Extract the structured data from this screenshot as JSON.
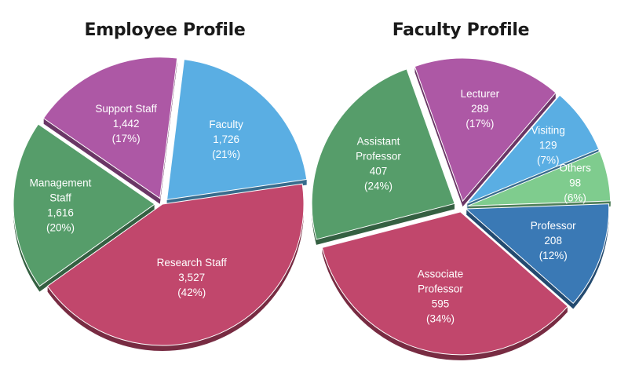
{
  "chart_data": [
    {
      "type": "pie",
      "title": "Employee Profile",
      "start_angle": -83,
      "slices": [
        {
          "lines": [
            "Faculty",
            "1,726",
            "(21%)"
          ],
          "value": 1726,
          "percent": 21,
          "color": "#5aaee3"
        },
        {
          "lines": [
            "Research Staff",
            "3,527",
            "(42%)"
          ],
          "value": 3527,
          "percent": 42,
          "color": "#c1476c"
        },
        {
          "lines": [
            "Management",
            "Staff",
            "1,616",
            "(20%)"
          ],
          "value": 1616,
          "percent": 20,
          "color": "#569d6a"
        },
        {
          "lines": [
            "Support Staff",
            "1,442",
            "(17%)"
          ],
          "value": 1442,
          "percent": 17,
          "color": "#ad58a5"
        }
      ]
    },
    {
      "type": "pie",
      "title": "Faculty Profile",
      "start_angle": -2,
      "slices": [
        {
          "lines": [
            "Professor",
            "208",
            "(12%)"
          ],
          "value": 208,
          "percent": 12,
          "color": "#3a79b5"
        },
        {
          "lines": [
            "Associate",
            "Professor",
            "595",
            "(34%)"
          ],
          "value": 595,
          "percent": 34,
          "color": "#c1476c"
        },
        {
          "lines": [
            "Assistant",
            "Professor",
            "407",
            "(24%)"
          ],
          "value": 407,
          "percent": 24,
          "color": "#569d6a"
        },
        {
          "lines": [
            "Lecturer",
            "289",
            "(17%)"
          ],
          "value": 289,
          "percent": 17,
          "color": "#ad58a5"
        },
        {
          "lines": [
            "Visiting",
            "129",
            "(7%)"
          ],
          "value": 129,
          "percent": 7,
          "color": "#5aaee3"
        },
        {
          "lines": [
            "Others",
            "98",
            "(6%)"
          ],
          "value": 98,
          "percent": 6,
          "color": "#7fcc8e"
        }
      ]
    }
  ]
}
